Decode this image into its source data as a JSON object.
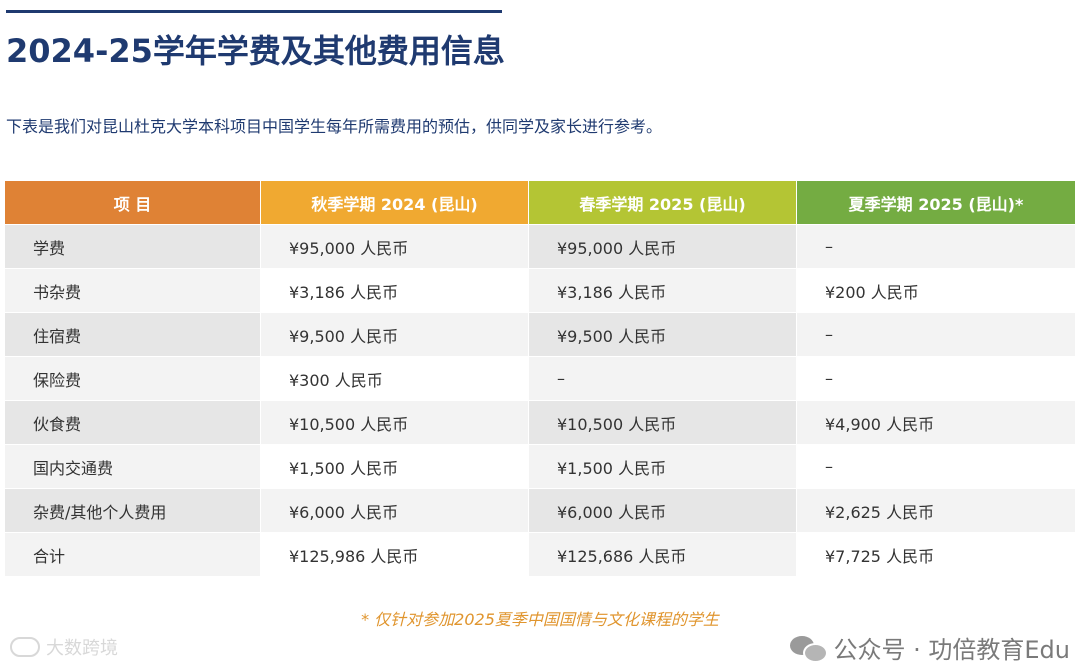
{
  "title": "2024-25学年学费及其他费用信息",
  "intro": "下表是我们对昆山杜克大学本科项目中国学生每年所需费用的预估，供同学及家长进行参考。",
  "colors": {
    "title": "#1f3a70",
    "header_item": "#df8235",
    "header_fall": "#f0a931",
    "header_spring": "#b4c534",
    "header_summer": "#74ac42",
    "footnote": "#e0952e"
  },
  "table": {
    "headers": {
      "item": "项 目",
      "fall": "秋季学期 2024 (昆山)",
      "spring": "春季学期 2025 (昆山)",
      "summer": "夏季学期 2025 (昆山)*"
    },
    "rows": [
      {
        "item": "学费",
        "fall": "¥95,000 人民币",
        "spring": "¥95,000 人民币",
        "summer": "–"
      },
      {
        "item": "书杂费",
        "fall": "¥3,186 人民币",
        "spring": "¥3,186 人民币",
        "summer": "¥200 人民币"
      },
      {
        "item": "住宿费",
        "fall": "¥9,500 人民币",
        "spring": "¥9,500 人民币",
        "summer": "–"
      },
      {
        "item": "保险费",
        "fall": "¥300 人民币",
        "spring": "–",
        "summer": "–"
      },
      {
        "item": "伙食费",
        "fall": "¥10,500 人民币",
        "spring": "¥10,500 人民币",
        "summer": "¥4,900 人民币"
      },
      {
        "item": "国内交通费",
        "fall": "¥1,500 人民币",
        "spring": "¥1,500 人民币",
        "summer": "–"
      },
      {
        "item": "杂费/其他个人费用",
        "fall": "¥6,000 人民币",
        "spring": "¥6,000 人民币",
        "summer": "¥2,625 人民币"
      },
      {
        "item": "合计",
        "fall": "¥125,986 人民币",
        "spring": "¥125,686 人民币",
        "summer": "¥7,725 人民币"
      }
    ]
  },
  "footnote": "* 仅针对参加2025夏季中国国情与文化课程的学生",
  "watermark_left": "大数跨境",
  "watermark_right": "公众号 · 功倍教育Edu",
  "icons": {
    "watermark_left": "logo-icon",
    "watermark_right": "wechat-icon"
  }
}
